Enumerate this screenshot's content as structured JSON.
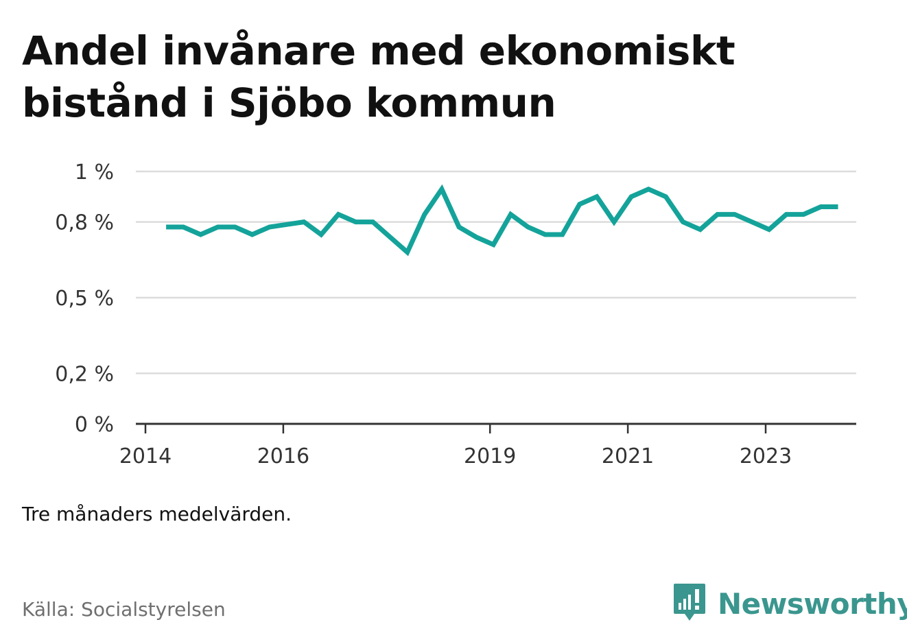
{
  "title": "Andel invånare med ekonomiskt bistånd i Sjöbo kommun",
  "note": "Tre månaders medelvärden.",
  "source": "Källa: Socialstyrelsen",
  "brand": {
    "name": "Newsworthy",
    "icon": "newsworthy-logo-icon",
    "color": "#3a968e"
  },
  "chart_data": {
    "type": "line",
    "title": "Andel invånare med ekonomiskt bistånd i Sjöbo kommun",
    "xlabel": "",
    "ylabel": "",
    "ylim": [
      0,
      1
    ],
    "yticks": [
      0,
      0.2,
      0.5,
      0.8,
      1
    ],
    "ytick_labels": [
      "0 %",
      "0,2 %",
      "0,5 %",
      "0,8 %",
      "1 %"
    ],
    "xticks": [
      2014,
      2016,
      2019,
      2021,
      2023
    ],
    "xtick_labels": [
      "2014",
      "2016",
      "2019",
      "2021",
      "2023"
    ],
    "xlim": [
      2014,
      2024.33
    ],
    "grid": true,
    "legend": "none",
    "line_color": "#14a39a",
    "series": [
      {
        "x": [
          2014.3,
          2014.55,
          2014.8,
          2015.05,
          2015.3,
          2015.55,
          2015.8,
          2016.05,
          2016.3,
          2016.55,
          2016.8,
          2017.05,
          2017.3,
          2017.55,
          2017.8,
          2018.05,
          2018.3,
          2018.55,
          2018.8,
          2019.05,
          2019.3,
          2019.55,
          2019.8,
          2020.05,
          2020.3,
          2020.55,
          2020.8,
          2021.05,
          2021.3,
          2021.55,
          2021.8,
          2022.05,
          2022.3,
          2022.55,
          2022.8,
          2023.05,
          2023.3,
          2023.55,
          2023.8,
          2024.05
        ],
        "values": [
          0.78,
          0.78,
          0.75,
          0.78,
          0.78,
          0.75,
          0.78,
          0.79,
          0.8,
          0.75,
          0.83,
          0.8,
          0.8,
          0.74,
          0.68,
          0.83,
          0.93,
          0.78,
          0.74,
          0.71,
          0.83,
          0.78,
          0.75,
          0.75,
          0.87,
          0.9,
          0.8,
          0.9,
          0.93,
          0.9,
          0.8,
          0.77,
          0.83,
          0.83,
          0.8,
          0.77,
          0.83,
          0.83,
          0.86,
          0.86
        ]
      }
    ]
  }
}
